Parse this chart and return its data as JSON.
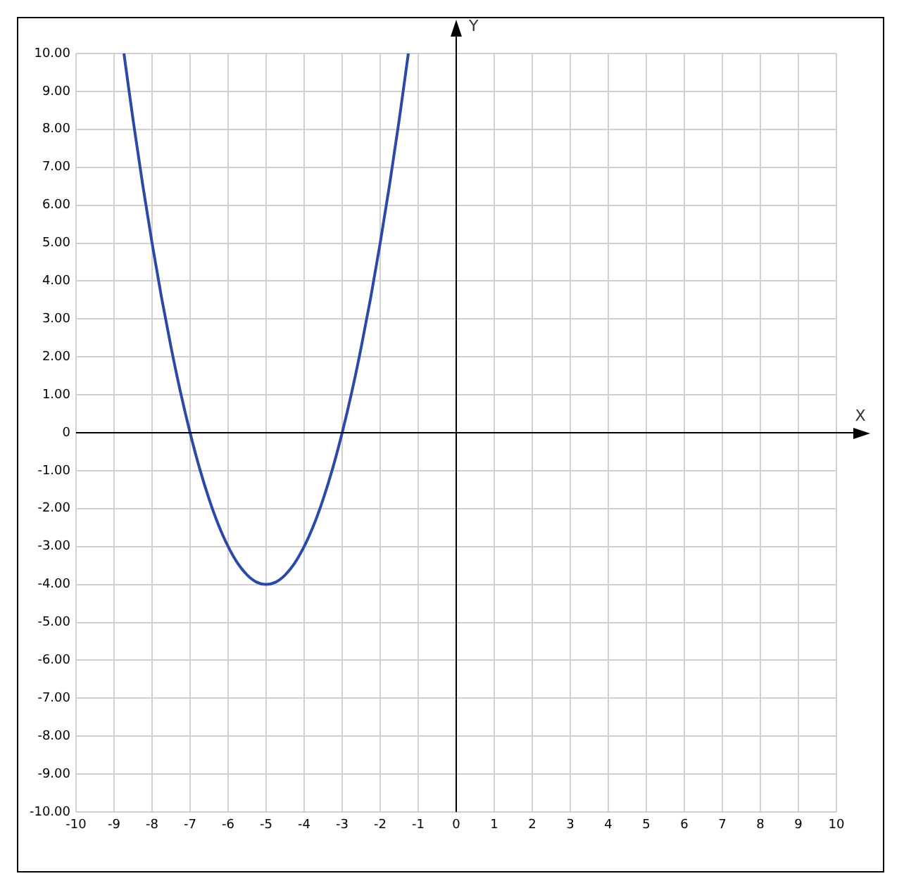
{
  "chart_data": {
    "type": "line",
    "xlabel": "X",
    "ylabel": "Y",
    "series": [
      {
        "color": "#2b4aa8",
        "x": [
          -8.74,
          -8.5,
          -8.25,
          -8,
          -7.75,
          -7.5,
          -7.25,
          -7,
          -6.75,
          -6.5,
          -6.25,
          -6,
          -5.75,
          -5.5,
          -5.25,
          -5,
          -4.75,
          -4.5,
          -4.25,
          -4,
          -3.75,
          -3.5,
          -3.25,
          -3,
          -2.75,
          -2.5,
          -2.25,
          -2,
          -1.75,
          -1.5,
          -1.26
        ],
        "values": [
          10,
          8.25,
          6.56,
          5,
          3.56,
          2.25,
          1.06,
          0,
          -0.94,
          -1.75,
          -2.44,
          -3,
          -3.44,
          -3.75,
          -3.94,
          -4,
          -3.94,
          -3.75,
          -3.44,
          -3,
          -2.44,
          -1.75,
          -0.94,
          0,
          1.06,
          2.25,
          3.56,
          5,
          6.56,
          8.25,
          10
        ]
      }
    ],
    "xlim": [
      -10,
      10
    ],
    "ylim": [
      -10,
      10
    ],
    "xticks": [
      -10,
      -9,
      -8,
      -7,
      -6,
      -5,
      -4,
      -3,
      -2,
      -1,
      0,
      1,
      2,
      3,
      4,
      5,
      6,
      7,
      8,
      9,
      10
    ],
    "yticks": [
      {
        "value": -10,
        "label": "-10.00"
      },
      {
        "value": -9,
        "label": "-9.00"
      },
      {
        "value": -8,
        "label": "-8.00"
      },
      {
        "value": -7,
        "label": "-7.00"
      },
      {
        "value": -6,
        "label": "-6.00"
      },
      {
        "value": -5,
        "label": "-5.00"
      },
      {
        "value": -4,
        "label": "-4.00"
      },
      {
        "value": -3,
        "label": "-3.00"
      },
      {
        "value": -2,
        "label": "-2.00"
      },
      {
        "value": -1,
        "label": "-1.00"
      },
      0,
      {
        "value": 1,
        "label": "1.00"
      },
      {
        "value": 2,
        "label": "2.00"
      },
      {
        "value": 3,
        "label": "3.00"
      },
      {
        "value": 4,
        "label": "4.00"
      },
      {
        "value": 5,
        "label": "5.00"
      },
      {
        "value": 6,
        "label": "6.00"
      },
      {
        "value": 7,
        "label": "7.00"
      },
      {
        "value": 8,
        "label": "8.00"
      },
      {
        "value": 9,
        "label": "9.00"
      },
      {
        "value": 10,
        "label": "10.00"
      }
    ],
    "grid": true,
    "legend": false,
    "marker": "none",
    "line_style": "solid"
  }
}
